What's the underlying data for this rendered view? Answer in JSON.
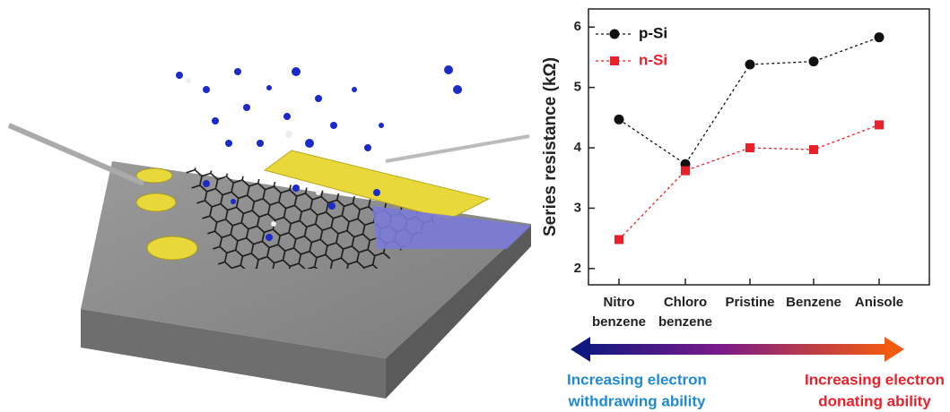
{
  "chart_data": {
    "type": "line",
    "y_label": "Series resistance (kΩ)",
    "categories": [
      [
        "Nitro",
        "benzene"
      ],
      [
        "Chloro",
        "benzene"
      ],
      [
        "Pristine"
      ],
      [
        "Benzene"
      ],
      [
        "Anisole"
      ]
    ],
    "series": [
      {
        "name": "p-Si",
        "color": "#111111",
        "marker": "circle",
        "values": [
          4.47,
          3.73,
          5.38,
          5.43,
          5.83
        ]
      },
      {
        "name": "n-Si",
        "color": "#e8202a",
        "marker": "square",
        "values": [
          2.48,
          3.62,
          4.0,
          3.97,
          4.38
        ]
      }
    ],
    "ylim": [
      1.73,
      6.3
    ],
    "yticks": [
      2,
      3,
      4,
      5,
      6
    ],
    "annotations": [
      {
        "text": [
          "Increasing electron",
          "withdrawing ability"
        ],
        "color": "#1f8ad0"
      },
      {
        "text": [
          "Increasing electron",
          "donating ability"
        ],
        "color": "#e8202a"
      }
    ]
  }
}
